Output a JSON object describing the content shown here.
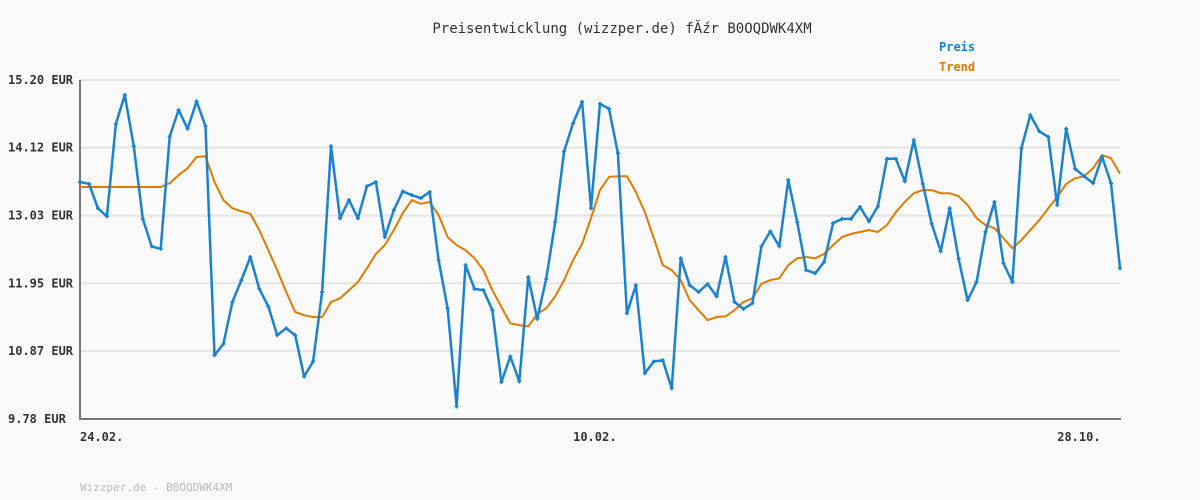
{
  "chart_data": {
    "type": "line",
    "title": "Preisentwicklung (wizzper.de) fĂźr B0OQDWK4XM",
    "xlabel": "",
    "ylabel": "",
    "ylim": [
      9.78,
      15.2
    ],
    "y_ticks": [
      "15.20 EUR",
      "14.12 EUR",
      "13.03 EUR",
      "11.95 EUR",
      "10.87 EUR",
      "9.78 EUR"
    ],
    "y_tick_values": [
      15.2,
      14.12,
      13.03,
      11.95,
      10.87,
      9.78
    ],
    "x_ticks": [
      {
        "label": "24.02.",
        "index": 0
      },
      {
        "label": "10.02.",
        "index": 55
      },
      {
        "label": "28.10.",
        "index": 109
      }
    ],
    "grid": true,
    "legend_position": "top-right",
    "series": [
      {
        "name": "Preis",
        "color": "#1a82d0",
        "values": [
          13.57,
          13.54,
          13.15,
          13.02,
          14.5,
          14.96,
          14.14,
          12.98,
          12.54,
          12.5,
          14.3,
          14.72,
          14.42,
          14.86,
          14.46,
          10.8,
          10.98,
          11.65,
          12.0,
          12.37,
          11.86,
          11.58,
          11.12,
          11.23,
          11.12,
          10.46,
          10.7,
          11.81,
          14.14,
          12.99,
          13.28,
          12.99,
          13.5,
          13.57,
          12.69,
          13.12,
          13.42,
          13.36,
          13.31,
          13.41,
          12.32,
          11.55,
          9.98,
          12.24,
          11.86,
          11.84,
          11.52,
          10.37,
          10.78,
          10.38,
          12.05,
          11.38,
          12.02,
          12.93,
          14.06,
          14.51,
          14.85,
          13.15,
          14.82,
          14.74,
          14.03,
          11.47,
          11.92,
          10.51,
          10.7,
          10.72,
          10.27,
          12.35,
          11.92,
          11.81,
          11.94,
          11.74,
          12.37,
          11.65,
          11.54,
          11.63,
          12.54,
          12.78,
          12.54,
          13.6,
          12.93,
          12.16,
          12.11,
          12.29,
          12.91,
          12.98,
          12.98,
          13.17,
          12.94,
          13.18,
          13.94,
          13.94,
          13.58,
          14.24,
          13.54,
          12.9,
          12.46,
          13.15,
          12.34,
          11.68,
          11.97,
          12.77,
          13.25,
          12.27,
          11.97,
          14.11,
          14.64,
          14.38,
          14.29,
          13.2,
          14.42,
          13.78,
          13.66,
          13.55,
          13.97,
          13.55,
          12.19
        ]
      },
      {
        "name": "Trend",
        "color": "#e07b00",
        "values": [
          13.49,
          13.49,
          13.49,
          13.49,
          13.49,
          13.49,
          13.49,
          13.49,
          13.49,
          13.49,
          13.55,
          13.68,
          13.79,
          13.97,
          13.98,
          13.57,
          13.28,
          13.15,
          13.1,
          13.06,
          12.8,
          12.48,
          12.16,
          11.81,
          11.49,
          11.44,
          11.41,
          11.41,
          11.65,
          11.71,
          11.84,
          11.97,
          12.19,
          12.42,
          12.56,
          12.8,
          13.07,
          13.28,
          13.22,
          13.25,
          13.04,
          12.69,
          12.56,
          12.48,
          12.35,
          12.16,
          11.84,
          11.57,
          11.31,
          11.28,
          11.26,
          11.46,
          11.55,
          11.74,
          12.0,
          12.32,
          12.58,
          12.99,
          13.44,
          13.65,
          13.66,
          13.66,
          13.41,
          13.09,
          12.67,
          12.24,
          12.16,
          12.0,
          11.68,
          11.52,
          11.36,
          11.41,
          11.42,
          11.52,
          11.65,
          11.71,
          11.94,
          12.0,
          12.03,
          12.24,
          12.35,
          12.37,
          12.35,
          12.42,
          12.56,
          12.69,
          12.74,
          12.77,
          12.8,
          12.77,
          12.88,
          13.09,
          13.25,
          13.39,
          13.44,
          13.44,
          13.39,
          13.39,
          13.34,
          13.2,
          12.99,
          12.88,
          12.83,
          12.67,
          12.51,
          12.64,
          12.8,
          12.96,
          13.15,
          13.33,
          13.54,
          13.63,
          13.66,
          13.79,
          14.0,
          13.95,
          13.7
        ]
      }
    ]
  },
  "footer": "Wizzper.de - B0OQDWK4XM"
}
